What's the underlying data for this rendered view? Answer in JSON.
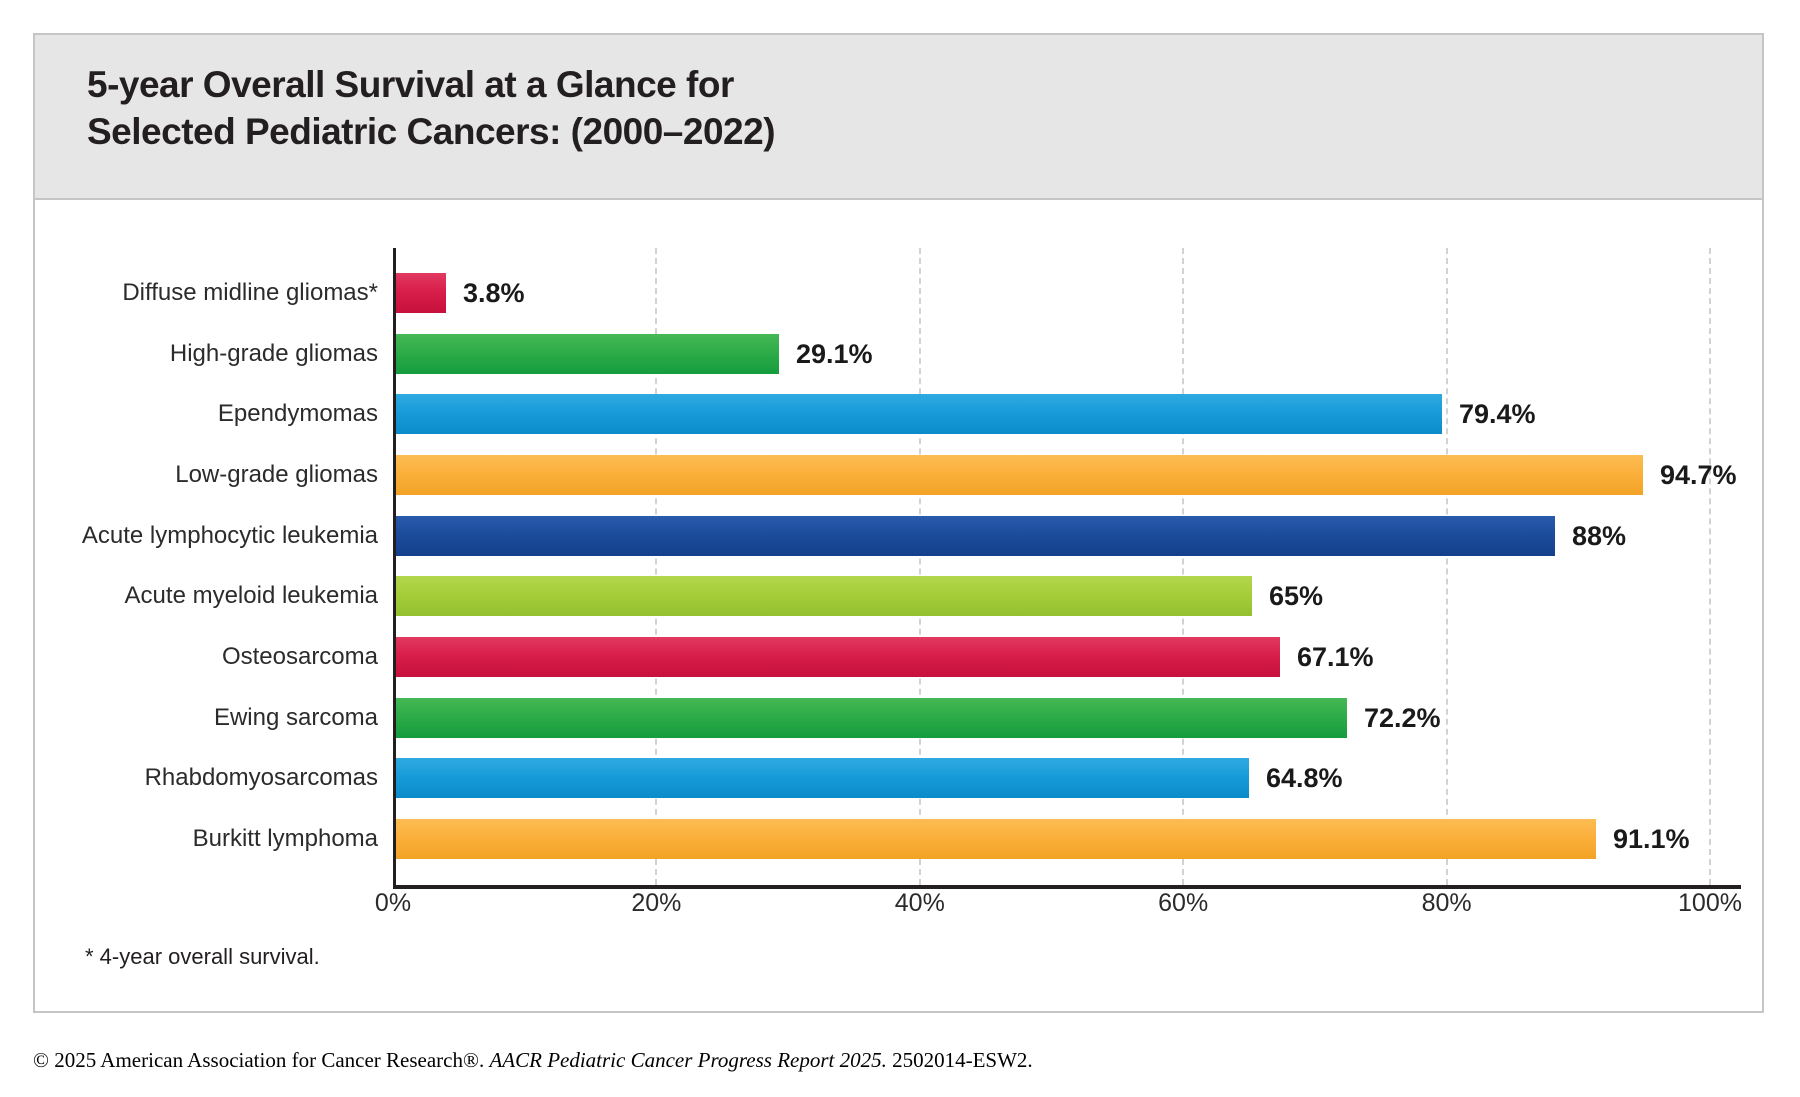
{
  "header": {
    "title_line1": "5-year Overall Survival at a Glance for",
    "title_line2": "Selected Pediatric Cancers: (2000–2022)"
  },
  "chart_data": {
    "type": "bar",
    "orientation": "horizontal",
    "title": "5-year Overall Survival at a Glance for Selected Pediatric Cancers: (2000–2022)",
    "categories": [
      "Diffuse midline gliomas*",
      "High-grade gliomas",
      "Ependymomas",
      "Low-grade gliomas",
      "Acute lymphocytic leukemia",
      "Acute myeloid leukemia",
      "Osteosarcoma",
      "Ewing sarcoma",
      "Rhabdomyosarcomas",
      "Burkitt lymphoma"
    ],
    "values": [
      3.8,
      29.1,
      79.4,
      94.7,
      88,
      65,
      67.1,
      72.2,
      64.8,
      91.1
    ],
    "value_labels": [
      "3.8%",
      "29.1%",
      "79.4%",
      "94.7%",
      "88%",
      "65%",
      "67.1%",
      "72.2%",
      "64.8%",
      "91.1%"
    ],
    "bar_color_keys": [
      "red",
      "green",
      "blue",
      "amber",
      "navy",
      "lime",
      "red",
      "green",
      "blue",
      "amber"
    ],
    "palette": {
      "red": {
        "top": "#E23A60",
        "mid": "#D81E4B",
        "bottom": "#C8103C"
      },
      "green": {
        "top": "#45B854",
        "mid": "#2EAC49",
        "bottom": "#149C3D"
      },
      "blue": {
        "top": "#2FAAE1",
        "mid": "#189CD9",
        "bottom": "#0B8CC9"
      },
      "amber": {
        "top": "#FCBD53",
        "mid": "#FBB03C",
        "bottom": "#F2A325"
      },
      "navy": {
        "top": "#2A5AAC",
        "mid": "#1C4C9C",
        "bottom": "#143F8C"
      },
      "lime": {
        "top": "#B2D64D",
        "mid": "#A6CE39",
        "bottom": "#94BF30"
      }
    },
    "x_tick_labels": [
      "0%",
      "20%",
      "40%",
      "60%",
      "80%",
      "100%"
    ],
    "xlim": [
      0,
      100
    ],
    "grid": "vertical dashed gridlines at 20% steps",
    "legend": "none",
    "axis_color": "#231f20",
    "gridline_color": "#d2d2d2"
  },
  "footnote": "* 4-year overall survival.",
  "footer": {
    "part_normal_1": "© 2025 American Association for Cancer Research®. ",
    "part_italic": "AACR Pediatric Cancer Progress Report 2025.",
    "part_normal_2": " 2502014-ESW2."
  }
}
